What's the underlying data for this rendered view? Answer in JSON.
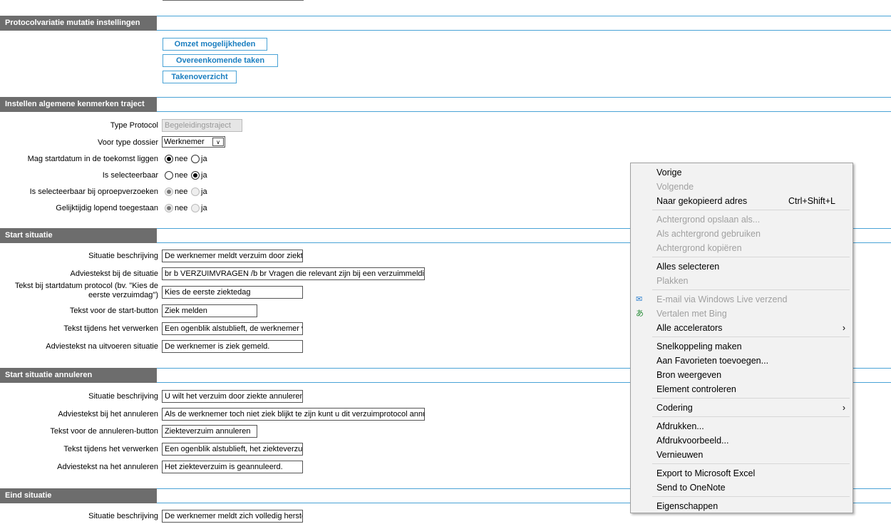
{
  "sections": {
    "protocolvariatie": {
      "title": "Protocolvariatie mutatie instellingen",
      "buttons": [
        "Omzet mogelijkheden",
        "Overeenkomende taken",
        "Takenoverzicht"
      ]
    },
    "algemeen": {
      "title": "Instellen algemene kenmerken traject",
      "type_protocol": {
        "label": "Type Protocol",
        "value": "Begeleidingstraject"
      },
      "voor_type_dossier": {
        "label": "Voor type dossier",
        "value": "Werknemer"
      },
      "radios": [
        {
          "label": "Mag startdatum in de toekomst liggen",
          "selected": "nee",
          "disabled": false
        },
        {
          "label": "Is selecteerbaar",
          "selected": "ja",
          "disabled": false
        },
        {
          "label": "Is selecteerbaar bij oproepverzoeken",
          "selected": "nee",
          "disabled": true
        },
        {
          "label": "Gelijktijdig lopend toegestaan",
          "selected": "nee",
          "disabled": true
        }
      ],
      "opt_nee": "nee",
      "opt_ja": "ja"
    },
    "start": {
      "title": "Start situatie",
      "fields": [
        {
          "label": "Situatie beschrijving",
          "value": "De werknemer meldt verzuim door ziekte"
        },
        {
          "label": "Adviestekst bij de situatie",
          "value": " br  b VERZUIMVRAGEN /b  br Vragen die relevant zijn bij een verzuimmelding: br  O"
        },
        {
          "label": "Tekst bij startdatum protocol (bv. \"Kies de eerste verzuimdag\")",
          "value": "Kies de eerste ziektedag"
        },
        {
          "label": "Tekst voor de start-button",
          "value": "Ziek melden"
        },
        {
          "label": "Tekst tijdens het verwerken",
          "value": "Een ogenblik alstublieft, de werknemer wordt"
        },
        {
          "label": "Adviestekst na uitvoeren situatie",
          "value": "De werknemer is ziek gemeld."
        }
      ]
    },
    "annuleren": {
      "title": "Start situatie annuleren",
      "fields": [
        {
          "label": "Situatie beschrijving",
          "value": "U wilt het verzuim door ziekte annuleren"
        },
        {
          "label": "Adviestekst bij het annuleren",
          "value": "Als de werknemer toch niet ziek blijkt te zijn kunt u dit verzuimprotocol annuleren."
        },
        {
          "label": "Tekst voor de annuleren-button",
          "value": "Ziekteverzuim annuleren"
        },
        {
          "label": "Tekst tijdens het verwerken",
          "value": "Een ogenblik alstublieft, het ziekteverzuim wo"
        },
        {
          "label": "Adviestekst na het annuleren",
          "value": "Het ziekteverzuim is geannuleerd."
        }
      ]
    },
    "eind": {
      "title": "Eind situatie",
      "fields": [
        {
          "label": "Situatie beschrijving",
          "value": "De werknemer meldt zich volledig hersteld"
        }
      ]
    }
  },
  "context_menu": {
    "items": [
      {
        "label": "Vorige",
        "enabled": true
      },
      {
        "label": "Volgende",
        "enabled": false
      },
      {
        "label": "Naar gekopieerd adres",
        "enabled": true,
        "shortcut": "Ctrl+Shift+L"
      },
      {
        "label": "Achtergrond opslaan als...",
        "enabled": false
      },
      {
        "label": "Als achtergrond gebruiken",
        "enabled": false
      },
      {
        "label": "Achtergrond kopiëren",
        "enabled": false
      },
      {
        "label": "Alles selecteren",
        "enabled": true
      },
      {
        "label": "Plakken",
        "enabled": false
      },
      {
        "label": "E-mail via Windows Live verzend",
        "enabled": false,
        "icon": "windows-live-mail-icon"
      },
      {
        "label": "Vertalen met Bing",
        "enabled": false,
        "icon": "bing-translate-icon"
      },
      {
        "label": "Alle accelerators",
        "enabled": true,
        "submenu": true
      },
      {
        "label": "Snelkoppeling maken",
        "enabled": true
      },
      {
        "label": "Aan Favorieten toevoegen...",
        "enabled": true
      },
      {
        "label": "Bron weergeven",
        "enabled": true
      },
      {
        "label": "Element controleren",
        "enabled": true
      },
      {
        "label": "Codering",
        "enabled": true,
        "submenu": true
      },
      {
        "label": "Afdrukken...",
        "enabled": true
      },
      {
        "label": "Afdrukvoorbeeld...",
        "enabled": true
      },
      {
        "label": "Vernieuwen",
        "enabled": true
      },
      {
        "label": "Export to Microsoft Excel",
        "enabled": true
      },
      {
        "label": "Send to OneNote",
        "enabled": true
      },
      {
        "label": "Eigenschappen",
        "enabled": true
      }
    ],
    "submenu_glyph": "›"
  },
  "colors": {
    "section_header": "#6d6d6d",
    "accent_line": "#4aa3d6",
    "button_text": "#1a7ec0"
  }
}
